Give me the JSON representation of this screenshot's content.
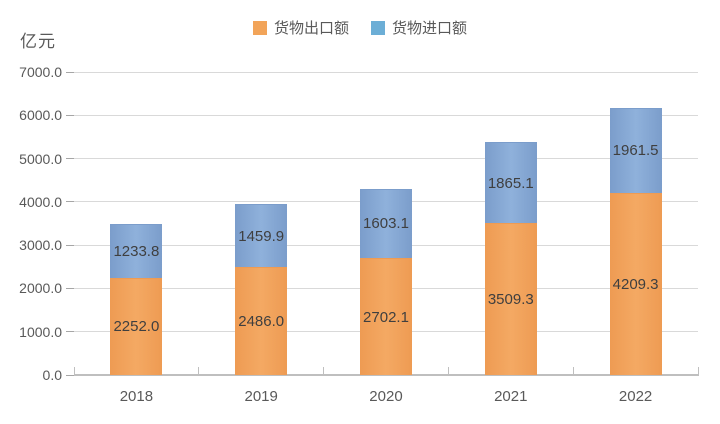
{
  "chart_data": {
    "type": "bar",
    "stacked": true,
    "title": "",
    "ylabel": "亿元",
    "xlabel": "",
    "categories": [
      "2018",
      "2019",
      "2020",
      "2021",
      "2022"
    ],
    "series": [
      {
        "name": "货物出口额",
        "color": "#F4A963",
        "color_edge": "#EE9B53",
        "legend_color": "#F2A459",
        "values": [
          2252.0,
          2486.0,
          2702.1,
          3509.3,
          4209.3
        ]
      },
      {
        "name": "货物进口额",
        "color": "#8FB1DB",
        "color_edge": "#7B9DCB",
        "legend_color": "#6CAED6",
        "values": [
          1233.8,
          1459.9,
          1603.1,
          1865.1,
          1961.5
        ]
      }
    ],
    "ylim": [
      0,
      7000
    ],
    "ytick_step": 1000,
    "ytick_decimals": 1,
    "grid": true,
    "legend_position": "top",
    "gridline_color": "#D9D9D9",
    "axis_color": "#BFBFBF",
    "tick_label_color": "#595959",
    "value_label_color": "#3F3F3F"
  }
}
